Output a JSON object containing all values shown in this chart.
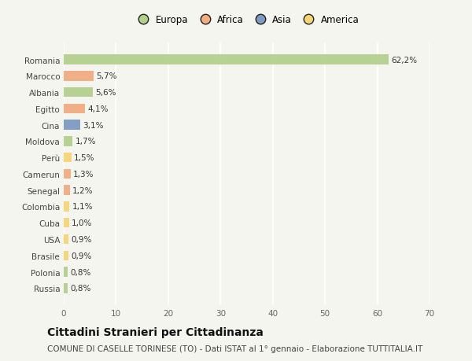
{
  "categories": [
    "Romania",
    "Marocco",
    "Albania",
    "Egitto",
    "Cina",
    "Moldova",
    "Perù",
    "Camerun",
    "Senegal",
    "Colombia",
    "Cuba",
    "USA",
    "Brasile",
    "Polonia",
    "Russia"
  ],
  "values": [
    62.2,
    5.7,
    5.6,
    4.1,
    3.1,
    1.7,
    1.5,
    1.3,
    1.2,
    1.1,
    1.0,
    0.9,
    0.9,
    0.8,
    0.8
  ],
  "labels": [
    "62,2%",
    "5,7%",
    "5,6%",
    "4,1%",
    "3,1%",
    "1,7%",
    "1,5%",
    "1,3%",
    "1,2%",
    "1,1%",
    "1,0%",
    "0,9%",
    "0,9%",
    "0,8%",
    "0,8%"
  ],
  "colors": [
    "#a8c97f",
    "#f0a070",
    "#a8c97f",
    "#f0a070",
    "#6b8cba",
    "#a8c97f",
    "#f5d060",
    "#f0a070",
    "#f0a070",
    "#f5d060",
    "#f5d060",
    "#f5d060",
    "#f5d060",
    "#a8c97f",
    "#a8c97f"
  ],
  "legend_labels": [
    "Europa",
    "Africa",
    "Asia",
    "America"
  ],
  "legend_colors": [
    "#a8c97f",
    "#f0a070",
    "#6b8cba",
    "#f5d060"
  ],
  "xlim": [
    0,
    70
  ],
  "xticks": [
    0,
    10,
    20,
    30,
    40,
    50,
    60,
    70
  ],
  "title": "Cittadini Stranieri per Cittadinanza",
  "subtitle": "COMUNE DI CASELLE TORINESE (TO) - Dati ISTAT al 1° gennaio - Elaborazione TUTTITALIA.IT",
  "bg_color": "#f5f5f0",
  "grid_color": "#ffffff",
  "bar_height": 0.6,
  "title_fontsize": 10,
  "subtitle_fontsize": 7.5,
  "label_fontsize": 7.5,
  "tick_fontsize": 7.5,
  "legend_fontsize": 8.5
}
